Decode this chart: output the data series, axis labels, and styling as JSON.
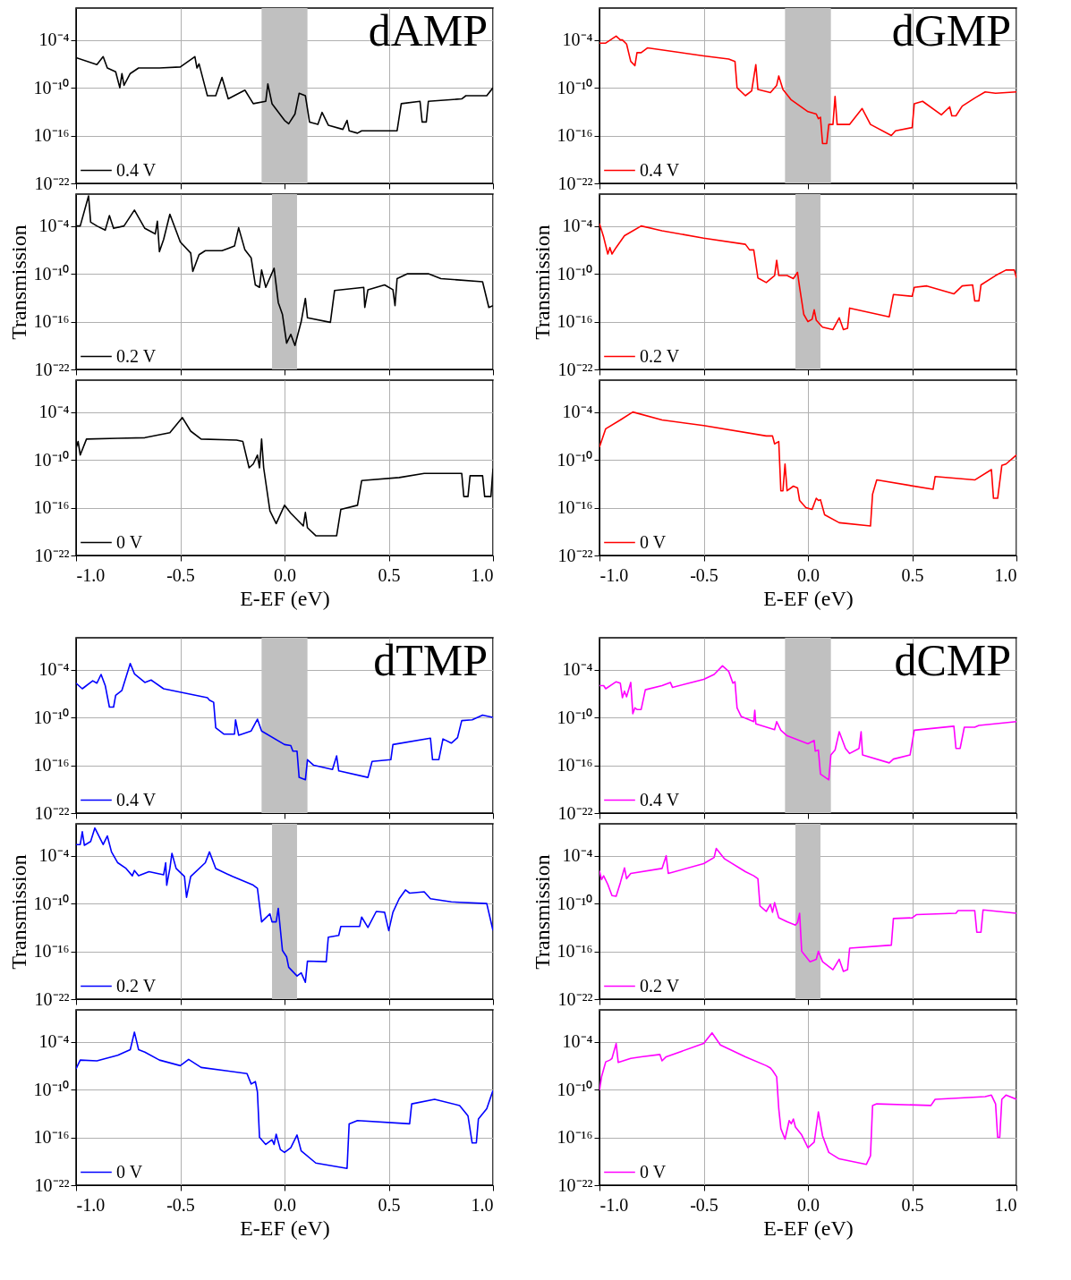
{
  "chart_data": [
    {
      "type": "line",
      "title": "dAMP",
      "series": [
        {
          "name": "0.4 V",
          "color": "#000000",
          "x": [
            -1.0,
            -0.9,
            -0.87,
            -0.85,
            -0.81,
            -0.79,
            -0.78,
            -0.77,
            -0.74,
            -0.7,
            -0.6,
            -0.5,
            -0.43,
            -0.42,
            -0.41,
            -0.38,
            -0.37,
            -0.33,
            -0.3,
            -0.27,
            -0.19,
            -0.15,
            -0.09,
            -0.08,
            -0.06,
            0.0,
            0.02,
            0.05,
            0.07,
            0.1,
            0.12,
            0.16,
            0.18,
            0.21,
            0.28,
            0.3,
            0.31,
            0.35,
            0.37,
            0.54,
            0.56,
            0.65,
            0.66,
            0.68,
            0.69,
            0.85,
            0.87,
            0.97,
            1.0
          ],
          "values": [
            6e-07,
            8e-08,
            8e-07,
            3e-08,
            1e-08,
            1e-10,
            6e-09,
            2e-10,
            6e-09,
            3e-08,
            3e-08,
            4e-08,
            8e-07,
            3e-08,
            1e-07,
            1e-10,
            1e-11,
            1e-11,
            2e-09,
            4e-12,
            5e-11,
            1e-12,
            2e-12,
            3e-10,
            1e-12,
            8e-15,
            3e-15,
            5e-14,
            2e-11,
            1e-11,
            5e-15,
            2.5e-15,
            8e-14,
            2e-15,
            6e-16,
            8e-15,
            4e-16,
            2e-16,
            4e-16,
            4e-16,
            1e-12,
            2e-12,
            5e-15,
            5e-15,
            2e-12,
            4e-12,
            1e-11,
            1e-11,
            1e-10
          ]
        }
      ],
      "xlim": [
        -1,
        1
      ],
      "xticks": [
        {
          "value": -1,
          "label": null
        },
        {
          "value": -0.5,
          "label": null
        },
        {
          "value": 0,
          "label": null
        },
        {
          "value": 0.5,
          "label": null
        },
        {
          "value": 1,
          "label": null
        }
      ],
      "ylim": [
        1e-22,
        1
      ],
      "yticks": [
        {
          "value": 1e-22,
          "label": "10⁻²²"
        },
        {
          "value": 1e-16,
          "label": "10⁻¹⁶"
        },
        {
          "value": 1e-10,
          "label": "10⁻¹⁰"
        },
        {
          "value": 0.0001,
          "label": "10⁻⁴"
        }
      ],
      "log": true,
      "grid": true,
      "legend": "bottom left",
      "tick_labels": "y",
      "bands": [
        {
          "axis": "x",
          "from": -0.11,
          "to": 0.11,
          "color": "#c0c0c0"
        }
      ]
    },
    {
      "type": "line",
      "ylabel": "Transmission",
      "series": [
        {
          "name": "0.2 V",
          "color": "#000000",
          "x": [
            -1.0,
            -0.98,
            -0.94,
            -0.93,
            -0.9,
            -0.86,
            -0.84,
            -0.82,
            -0.77,
            -0.72,
            -0.67,
            -0.62,
            -0.61,
            -0.6,
            -0.58,
            -0.55,
            -0.5,
            -0.45,
            -0.44,
            -0.41,
            -0.38,
            -0.3,
            -0.24,
            -0.22,
            -0.19,
            -0.16,
            -0.14,
            -0.12,
            -0.11,
            -0.09,
            -0.05,
            -0.03,
            -0.01,
            0.01,
            0.03,
            0.05,
            0.08,
            0.1,
            0.11,
            0.22,
            0.24,
            0.38,
            0.385,
            0.4,
            0.48,
            0.52,
            0.53,
            0.54,
            0.59,
            0.69,
            0.75,
            0.95,
            0.98,
            1.0
          ],
          "values": [
            0.0001,
            0.0001,
            0.6,
            0.0003,
            0.0001,
            3e-05,
            0.002,
            5e-05,
            0.0001,
            0.01,
            5e-05,
            1e-05,
            0.0004,
            6e-08,
            2e-06,
            0.003,
            1e-06,
            4e-08,
            2e-10,
            2.5e-08,
            8e-08,
            8e-08,
            3e-07,
            6e-05,
            1e-07,
            1e-08,
            4e-12,
            2e-12,
            3e-10,
            2e-12,
            5e-10,
            2.5e-14,
            8e-16,
            2e-19,
            2.5e-18,
            1e-19,
            1e-16,
            8e-14,
            3e-16,
            8e-17,
            8e-13,
            2e-12,
            6e-15,
            1e-12,
            4e-12,
            1e-12,
            1e-14,
            2.5e-11,
            1e-10,
            1e-10,
            2.5e-11,
            1e-11,
            6e-15,
            1e-14
          ]
        }
      ],
      "xlim": [
        -1,
        1
      ],
      "xticks": [
        {
          "value": -1,
          "label": null
        },
        {
          "value": -0.5,
          "label": null
        },
        {
          "value": 0,
          "label": null
        },
        {
          "value": 0.5,
          "label": null
        },
        {
          "value": 1,
          "label": null
        }
      ],
      "ylim": [
        1e-22,
        1
      ],
      "yticks": [
        {
          "value": 1e-22,
          "label": "10⁻²²"
        },
        {
          "value": 1e-16,
          "label": "10⁻¹⁶"
        },
        {
          "value": 1e-10,
          "label": "10⁻¹⁰"
        },
        {
          "value": 0.0001,
          "label": "10⁻⁴"
        }
      ],
      "log": true,
      "grid": true,
      "legend": "bottom left",
      "tick_labels": "y",
      "bands": [
        {
          "axis": "x",
          "from": -0.06,
          "to": 0.06,
          "color": "#c0c0c0"
        }
      ]
    },
    {
      "type": "line",
      "xlabel": "E-EF (eV)",
      "series": [
        {
          "name": "0 V",
          "color": "#000000",
          "x": [
            -1.0,
            -0.99,
            -0.98,
            -0.95,
            -0.8,
            -0.67,
            -0.55,
            -0.49,
            -0.45,
            -0.4,
            -0.23,
            -0.2,
            -0.17,
            -0.15,
            -0.13,
            -0.12,
            -0.11,
            -0.1,
            -0.07,
            -0.04,
            0.0,
            0.03,
            0.09,
            0.1,
            0.11,
            0.15,
            0.25,
            0.27,
            0.35,
            0.37,
            0.55,
            0.67,
            0.85,
            0.86,
            0.88,
            0.89,
            0.95,
            0.96,
            0.99,
            1.0
          ],
          "values": [
            3e-09,
            2e-08,
            4e-10,
            4e-08,
            5e-08,
            6e-08,
            2.5e-07,
            2e-05,
            4e-07,
            4e-08,
            3e-08,
            2e-08,
            1e-11,
            3e-11,
            4e-10,
            1e-11,
            4e-08,
            1e-11,
            4e-17,
            1e-18,
            2e-16,
            2e-17,
            5e-19,
            2.5e-17,
            3e-19,
            3e-20,
            3e-20,
            6e-17,
            2e-16,
            2.5e-13,
            6e-13,
            2e-12,
            2e-12,
            2.5e-15,
            2.5e-15,
            1e-12,
            1e-12,
            2.5e-15,
            2.5e-15,
            8e-12
          ]
        }
      ],
      "xlim": [
        -1,
        1
      ],
      "xticks": [
        {
          "value": -1,
          "label": "-1.0"
        },
        {
          "value": -0.5,
          "label": "-0.5"
        },
        {
          "value": 0,
          "label": "0.0"
        },
        {
          "value": 0.5,
          "label": "0.5"
        },
        {
          "value": 1,
          "label": "1.0"
        }
      ],
      "ylim": [
        1e-22,
        1
      ],
      "yticks": [
        {
          "value": 1e-22,
          "label": "10⁻²²"
        },
        {
          "value": 1e-16,
          "label": "10⁻¹⁶"
        },
        {
          "value": 1e-10,
          "label": "10⁻¹⁰"
        },
        {
          "value": 0.0001,
          "label": "10⁻⁴"
        }
      ],
      "log": true,
      "grid": true,
      "legend": "bottom left"
    },
    {
      "type": "line",
      "title": "dGMP",
      "series": [
        {
          "name": "0.4 V",
          "color": "#ff0000",
          "x": [
            -1.0,
            -0.97,
            -0.92,
            -0.9,
            -0.89,
            -0.87,
            -0.85,
            -0.83,
            -0.82,
            -0.8,
            -0.77,
            -0.5,
            -0.38,
            -0.35,
            -0.34,
            -0.3,
            -0.27,
            -0.25,
            -0.24,
            -0.18,
            -0.15,
            -0.14,
            -0.12,
            -0.08,
            0.0,
            0.04,
            0.05,
            0.06,
            0.07,
            0.09,
            0.1,
            0.12,
            0.13,
            0.14,
            0.2,
            0.26,
            0.3,
            0.4,
            0.42,
            0.5,
            0.51,
            0.55,
            0.64,
            0.68,
            0.69,
            0.71,
            0.74,
            0.8,
            0.85,
            0.9,
            1.0
          ],
          "values": [
            4e-05,
            4e-05,
            0.0003,
            0.0001,
            0.0001,
            3e-05,
            2e-07,
            6e-08,
            2.5e-06,
            2.5e-06,
            1e-05,
            1e-06,
            4e-07,
            2e-07,
            1e-10,
            1e-11,
            4e-11,
            8e-08,
            6e-11,
            2.5e-11,
            2e-10,
            3e-09,
            6e-11,
            3e-12,
            1e-13,
            5e-14,
            1.3e-14,
            2e-14,
            1e-17,
            1e-17,
            2.5e-15,
            2.5e-15,
            8e-12,
            2.5e-15,
            2.5e-15,
            2.5e-13,
            2.5e-15,
            1e-16,
            4e-16,
            1e-15,
            1e-12,
            2e-12,
            4e-14,
            4e-13,
            3e-14,
            3e-14,
            5e-13,
            5e-12,
            3e-11,
            2e-11,
            3e-11
          ]
        }
      ],
      "xlim": [
        -1,
        1
      ],
      "xticks": [
        {
          "value": -1,
          "label": null
        },
        {
          "value": -0.5,
          "label": null
        },
        {
          "value": 0,
          "label": null
        },
        {
          "value": 0.5,
          "label": null
        },
        {
          "value": 1,
          "label": null
        }
      ],
      "ylim": [
        1e-22,
        1
      ],
      "yticks": [
        {
          "value": 1e-22,
          "label": "10⁻²²"
        },
        {
          "value": 1e-16,
          "label": "10⁻¹⁶"
        },
        {
          "value": 1e-10,
          "label": "10⁻¹⁰"
        },
        {
          "value": 0.0001,
          "label": "10⁻⁴"
        }
      ],
      "log": true,
      "grid": true,
      "legend": "bottom left",
      "tick_labels": "y",
      "bands": [
        {
          "axis": "x",
          "from": -0.11,
          "to": 0.11,
          "color": "#c0c0c0"
        }
      ]
    },
    {
      "type": "line",
      "ylabel": "Transmission",
      "series": [
        {
          "name": "0.2 V",
          "color": "#ff0000",
          "x": [
            -1.0,
            -0.98,
            -0.96,
            -0.95,
            -0.94,
            -0.92,
            -0.88,
            -0.8,
            -0.7,
            -0.5,
            -0.3,
            -0.28,
            -0.26,
            -0.24,
            -0.2,
            -0.16,
            -0.15,
            -0.14,
            -0.1,
            -0.07,
            -0.05,
            -0.04,
            -0.02,
            0.0,
            0.02,
            0.03,
            0.04,
            0.07,
            0.12,
            0.15,
            0.17,
            0.19,
            0.2,
            0.39,
            0.41,
            0.5,
            0.51,
            0.57,
            0.7,
            0.74,
            0.79,
            0.8,
            0.82,
            0.83,
            0.9,
            0.95,
            0.99,
            1.0
          ],
          "values": [
            0.0002,
            4e-06,
            3e-08,
            2e-07,
            3e-08,
            2e-07,
            6e-06,
            0.0001,
            2.5e-05,
            3e-06,
            5e-07,
            1e-07,
            1e-07,
            3e-11,
            8e-12,
            6e-11,
            5e-09,
            6e-11,
            6e-11,
            2.5e-11,
            1.5e-10,
            2e-12,
            8e-16,
            1e-16,
            2e-16,
            3e-15,
            1.5e-16,
            2e-17,
            1e-17,
            3e-16,
            1e-17,
            1.5e-17,
            5e-15,
            4e-16,
            2.5e-13,
            1.5e-13,
            2e-12,
            3e-12,
            3e-13,
            3e-12,
            4e-12,
            4e-14,
            4e-14,
            4e-12,
            6e-11,
            3e-10,
            3e-10,
            3e-11
          ]
        }
      ],
      "xlim": [
        -1,
        1
      ],
      "xticks": [
        {
          "value": -1,
          "label": null
        },
        {
          "value": -0.5,
          "label": null
        },
        {
          "value": 0,
          "label": null
        },
        {
          "value": 0.5,
          "label": null
        },
        {
          "value": 1,
          "label": null
        }
      ],
      "ylim": [
        1e-22,
        1
      ],
      "yticks": [
        {
          "value": 1e-22,
          "label": "10⁻²²"
        },
        {
          "value": 1e-16,
          "label": "10⁻¹⁶"
        },
        {
          "value": 1e-10,
          "label": "10⁻¹⁰"
        },
        {
          "value": 0.0001,
          "label": "10⁻⁴"
        }
      ],
      "log": true,
      "grid": true,
      "legend": "bottom left",
      "tick_labels": "y",
      "bands": [
        {
          "axis": "x",
          "from": -0.06,
          "to": 0.06,
          "color": "#c0c0c0"
        }
      ]
    },
    {
      "type": "line",
      "xlabel": "E-EF (eV)",
      "series": [
        {
          "name": "0 V",
          "color": "#ff0000",
          "x": [
            -1.0,
            -0.97,
            -0.9,
            -0.84,
            -0.7,
            -0.5,
            -0.2,
            -0.17,
            -0.16,
            -0.14,
            -0.13,
            -0.12,
            -0.11,
            -0.1,
            -0.07,
            -0.05,
            -0.04,
            -0.01,
            0.02,
            0.04,
            0.05,
            0.06,
            0.08,
            0.15,
            0.3,
            0.31,
            0.33,
            0.6,
            0.61,
            0.8,
            0.88,
            0.89,
            0.91,
            0.93,
            0.95,
            1.0
          ],
          "values": [
            4e-09,
            8e-07,
            1e-05,
            0.0001,
            1e-05,
            2e-06,
            1e-07,
            1e-07,
            1e-08,
            2e-08,
            1.3e-14,
            1.3e-14,
            3e-11,
            1.3e-14,
            5e-14,
            3e-14,
            8e-16,
            1e-16,
            6e-17,
            1.5e-15,
            8e-16,
            1e-15,
            1.3e-17,
            1.3e-18,
            5e-19,
            5e-15,
            3e-13,
            2e-14,
            8e-13,
            3e-13,
            6e-12,
            1.5e-15,
            1.5e-15,
            2e-11,
            3e-11,
            4e-10
          ]
        }
      ],
      "xlim": [
        -1,
        1
      ],
      "xticks": [
        {
          "value": -1,
          "label": "-1.0"
        },
        {
          "value": -0.5,
          "label": "-0.5"
        },
        {
          "value": 0,
          "label": "0.0"
        },
        {
          "value": 0.5,
          "label": "0.5"
        },
        {
          "value": 1,
          "label": "1.0"
        }
      ],
      "ylim": [
        1e-22,
        1
      ],
      "yticks": [
        {
          "value": 1e-22,
          "label": "10⁻²²"
        },
        {
          "value": 1e-16,
          "label": "10⁻¹⁶"
        },
        {
          "value": 1e-10,
          "label": "10⁻¹⁰"
        },
        {
          "value": 0.0001,
          "label": "10⁻⁴"
        }
      ],
      "log": true,
      "grid": true,
      "legend": "bottom left"
    },
    {
      "type": "line",
      "title": "dTMP",
      "series": [
        {
          "name": "0.4 V",
          "color": "#0000ff",
          "x": [
            -1.0,
            -0.97,
            -0.92,
            -0.9,
            -0.88,
            -0.86,
            -0.84,
            -0.82,
            -0.81,
            -0.78,
            -0.74,
            -0.72,
            -0.67,
            -0.64,
            -0.58,
            -0.37,
            -0.36,
            -0.34,
            -0.33,
            -0.29,
            -0.24,
            -0.235,
            -0.22,
            -0.16,
            -0.13,
            -0.11,
            0.0,
            0.03,
            0.04,
            0.06,
            0.07,
            0.1,
            0.11,
            0.14,
            0.23,
            0.25,
            0.26,
            0.4,
            0.42,
            0.51,
            0.52,
            0.7,
            0.71,
            0.74,
            0.76,
            0.8,
            0.83,
            0.85,
            0.9,
            0.95,
            1.0
          ],
          "values": [
            2e-06,
            4e-07,
            4e-06,
            2e-06,
            2.5e-05,
            1e-06,
            2e-09,
            2e-09,
            6e-08,
            2.5e-07,
            0.0006,
            3e-05,
            2.5e-06,
            5e-06,
            4e-07,
            3e-08,
            1.5e-08,
            8e-09,
            5e-12,
            8e-13,
            8e-13,
            5e-11,
            6e-13,
            2e-12,
            6e-11,
            2e-12,
            4e-14,
            3e-14,
            6e-15,
            6e-15,
            3e-18,
            1.5e-18,
            5e-16,
            1e-16,
            3e-17,
            1.5e-15,
            2e-17,
            3e-18,
            3e-16,
            5e-16,
            4e-14,
            2.5e-13,
            5e-16,
            5e-16,
            2e-13,
            6e-14,
            3e-13,
            4e-11,
            5e-11,
            2e-10,
            1e-10
          ]
        }
      ],
      "xlim": [
        -1,
        1
      ],
      "xticks": [
        {
          "value": -1,
          "label": null
        },
        {
          "value": -0.5,
          "label": null
        },
        {
          "value": 0,
          "label": null
        },
        {
          "value": 0.5,
          "label": null
        },
        {
          "value": 1,
          "label": null
        }
      ],
      "ylim": [
        1e-22,
        1
      ],
      "yticks": [
        {
          "value": 1e-22,
          "label": "10⁻²²"
        },
        {
          "value": 1e-16,
          "label": "10⁻¹⁶"
        },
        {
          "value": 1e-10,
          "label": "10⁻¹⁰"
        },
        {
          "value": 0.0001,
          "label": "10⁻⁴"
        }
      ],
      "log": true,
      "grid": true,
      "legend": "bottom left",
      "tick_labels": "y",
      "bands": [
        {
          "axis": "x",
          "from": -0.11,
          "to": 0.11,
          "color": "#c0c0c0"
        }
      ]
    },
    {
      "type": "line",
      "ylabel": "Transmission",
      "series": [
        {
          "name": "0.2 V",
          "color": "#0000ff",
          "x": [
            -1.0,
            -0.98,
            -0.97,
            -0.96,
            -0.93,
            -0.91,
            -0.87,
            -0.85,
            -0.83,
            -0.8,
            -0.76,
            -0.73,
            -0.72,
            -0.7,
            -0.65,
            -0.58,
            -0.57,
            -0.565,
            -0.55,
            -0.54,
            -0.52,
            -0.48,
            -0.47,
            -0.45,
            -0.38,
            -0.36,
            -0.33,
            -0.25,
            -0.15,
            -0.13,
            -0.11,
            -0.07,
            -0.06,
            -0.04,
            -0.03,
            -0.01,
            0.01,
            0.02,
            0.06,
            0.08,
            0.1,
            0.11,
            0.2,
            0.21,
            0.26,
            0.27,
            0.36,
            0.37,
            0.4,
            0.44,
            0.48,
            0.5,
            0.52,
            0.55,
            0.58,
            0.6,
            0.67,
            0.7,
            0.8,
            0.97,
            1.0
          ],
          "values": [
            0.0025,
            0.0025,
            0.1,
            0.002,
            0.006,
            0.3,
            0.0025,
            0.03,
            0.0003,
            1.3e-05,
            2.5e-06,
            3e-07,
            1.4e-06,
            3e-07,
            1e-06,
            4e-07,
            1.3e-05,
            2e-08,
            2.5e-06,
            0.0002,
            2.5e-06,
            2.5e-07,
            6e-10,
            2.5e-07,
            1.3e-05,
            0.0003,
            2.5e-06,
            2.5e-07,
            2e-08,
            8e-09,
            5e-13,
            5e-12,
            5e-13,
            5e-13,
            2.5e-11,
            1.3e-16,
            2e-17,
            1e-18,
            8e-20,
            2e-19,
            1.3e-20,
            6e-18,
            5e-18,
            6e-15,
            1e-14,
            1.3e-13,
            1.3e-13,
            2e-12,
            1e-13,
            1e-11,
            8e-12,
            4e-14,
            8e-12,
            4e-10,
            5e-09,
            2e-09,
            3e-09,
            4e-10,
            1.6e-10,
            1e-10,
            4e-14
          ]
        }
      ],
      "xlim": [
        -1,
        1
      ],
      "xticks": [
        {
          "value": -1,
          "label": null
        },
        {
          "value": -0.5,
          "label": null
        },
        {
          "value": 0,
          "label": null
        },
        {
          "value": 0.5,
          "label": null
        },
        {
          "value": 1,
          "label": null
        }
      ],
      "ylim": [
        1e-22,
        1
      ],
      "yticks": [
        {
          "value": 1e-22,
          "label": "10⁻²²"
        },
        {
          "value": 1e-16,
          "label": "10⁻¹⁶"
        },
        {
          "value": 1e-10,
          "label": "10⁻¹⁰"
        },
        {
          "value": 0.0001,
          "label": "10⁻⁴"
        }
      ],
      "log": true,
      "grid": true,
      "legend": "bottom left",
      "tick_labels": "y",
      "bands": [
        {
          "axis": "x",
          "from": -0.06,
          "to": 0.06,
          "color": "#c0c0c0"
        }
      ]
    },
    {
      "type": "line",
      "xlabel": "E-EF (eV)",
      "series": [
        {
          "name": "0 V",
          "color": "#0000ff",
          "x": [
            -1.0,
            -0.98,
            -0.9,
            -0.8,
            -0.74,
            -0.72,
            -0.7,
            -0.67,
            -0.6,
            -0.5,
            -0.46,
            -0.4,
            -0.18,
            -0.16,
            -0.14,
            -0.13,
            -0.12,
            -0.09,
            -0.06,
            -0.05,
            -0.04,
            -0.02,
            0.0,
            0.03,
            0.06,
            0.08,
            0.15,
            0.3,
            0.31,
            0.35,
            0.6,
            0.61,
            0.72,
            0.84,
            0.88,
            0.9,
            0.92,
            0.93,
            0.97,
            1.0
          ],
          "values": [
            4e-08,
            5e-07,
            4e-07,
            2e-06,
            1e-05,
            0.0016,
            1e-05,
            5e-06,
            5e-07,
            1e-07,
            6e-07,
            6e-08,
            1e-08,
            5e-10,
            1e-09,
            5e-11,
            1e-16,
            1.3e-17,
            5e-17,
            1.3e-17,
            2.5e-16,
            3e-18,
            1.3e-18,
            5e-18,
            2e-16,
            2e-18,
            6e-20,
            1.3e-20,
            5e-15,
            1.3e-14,
            5e-15,
            1.6e-12,
            6e-12,
            1e-12,
            5e-14,
            2e-17,
            2e-17,
            2e-14,
            4e-13,
            8e-11
          ]
        }
      ],
      "xlim": [
        -1,
        1
      ],
      "xticks": [
        {
          "value": -1,
          "label": "-1.0"
        },
        {
          "value": -0.5,
          "label": "-0.5"
        },
        {
          "value": 0,
          "label": "0.0"
        },
        {
          "value": 0.5,
          "label": "0.5"
        },
        {
          "value": 1,
          "label": "1.0"
        }
      ],
      "ylim": [
        1e-22,
        1
      ],
      "yticks": [
        {
          "value": 1e-22,
          "label": "10⁻²²"
        },
        {
          "value": 1e-16,
          "label": "10⁻¹⁶"
        },
        {
          "value": 1e-10,
          "label": "10⁻¹⁰"
        },
        {
          "value": 0.0001,
          "label": "10⁻⁴"
        }
      ],
      "log": true,
      "grid": true,
      "legend": "bottom left"
    },
    {
      "type": "line",
      "title": "dCMP",
      "series": [
        {
          "name": "0.4 V",
          "color": "#ff00ff",
          "x": [
            -1.0,
            -0.98,
            -0.97,
            -0.92,
            -0.9,
            -0.89,
            -0.88,
            -0.87,
            -0.85,
            -0.84,
            -0.83,
            -0.82,
            -0.8,
            -0.78,
            -0.7,
            -0.66,
            -0.65,
            -0.5,
            -0.45,
            -0.41,
            -0.38,
            -0.36,
            -0.35,
            -0.34,
            -0.32,
            -0.26,
            -0.255,
            -0.25,
            -0.16,
            -0.15,
            -0.13,
            -0.1,
            0.0,
            0.03,
            0.035,
            0.05,
            0.06,
            0.1,
            0.11,
            0.13,
            0.15,
            0.18,
            0.2,
            0.245,
            0.255,
            0.262,
            0.39,
            0.41,
            0.49,
            0.51,
            0.7,
            0.71,
            0.73,
            0.75,
            0.8,
            0.82,
            1.0
          ],
          "values": [
            1e-06,
            1e-06,
            4e-07,
            3e-06,
            2e-06,
            3e-08,
            2e-07,
            4e-08,
            2.5e-06,
            3e-10,
            1.6e-09,
            1e-09,
            1e-09,
            3e-07,
            1e-06,
            2.5e-06,
            6e-07,
            6e-06,
            2.5e-05,
            0.0003,
            6e-05,
            2e-06,
            3e-06,
            1.6e-09,
            1.3e-10,
            3e-11,
            8e-10,
            1.6e-11,
            3e-12,
            3e-11,
            2.5e-12,
            5e-13,
            5e-14,
            1.3e-13,
            6e-15,
            8e-15,
            8e-18,
            1.5e-18,
            2e-15,
            8e-15,
            1.6e-12,
            1.3e-14,
            3e-15,
            1.3e-14,
            1.6e-12,
            2e-15,
            2e-16,
            6e-16,
            2e-15,
            2.5e-12,
            8e-12,
            1.3e-14,
            1.3e-14,
            6e-12,
            6e-12,
            1e-11,
            3e-11
          ]
        }
      ],
      "xlim": [
        -1,
        1
      ],
      "xticks": [
        {
          "value": -1,
          "label": null
        },
        {
          "value": -0.5,
          "label": null
        },
        {
          "value": 0,
          "label": null
        },
        {
          "value": 0.5,
          "label": null
        },
        {
          "value": 1,
          "label": null
        }
      ],
      "ylim": [
        1e-22,
        1
      ],
      "yticks": [
        {
          "value": 1e-22,
          "label": "10⁻²²"
        },
        {
          "value": 1e-16,
          "label": "10⁻¹⁶"
        },
        {
          "value": 1e-10,
          "label": "10⁻¹⁰"
        },
        {
          "value": 0.0001,
          "label": "10⁻⁴"
        }
      ],
      "log": true,
      "grid": true,
      "legend": "bottom left",
      "tick_labels": "y",
      "bands": [
        {
          "axis": "x",
          "from": -0.11,
          "to": 0.11,
          "color": "#c0c0c0"
        }
      ]
    },
    {
      "type": "line",
      "ylabel": "Transmission",
      "series": [
        {
          "name": "0.2 V",
          "color": "#ff00ff",
          "x": [
            -1.0,
            -0.99,
            -0.98,
            -0.96,
            -0.94,
            -0.92,
            -0.9,
            -0.88,
            -0.87,
            -0.85,
            -0.7,
            -0.68,
            -0.67,
            -0.5,
            -0.45,
            -0.44,
            -0.4,
            -0.3,
            -0.26,
            -0.24,
            -0.23,
            -0.2,
            -0.18,
            -0.17,
            -0.16,
            -0.14,
            -0.1,
            -0.06,
            -0.05,
            -0.04,
            -0.03,
            0.01,
            0.04,
            0.05,
            0.07,
            0.12,
            0.15,
            0.17,
            0.19,
            0.2,
            0.4,
            0.41,
            0.5,
            0.52,
            0.71,
            0.72,
            0.8,
            0.81,
            0.83,
            0.84,
            1.0
          ],
          "values": [
            1.3e-06,
            1e-07,
            3e-07,
            2.5e-08,
            1e-09,
            8e-10,
            4e-08,
            3e-06,
            1.3e-07,
            6e-07,
            2.5e-06,
            0.0001,
            6e-07,
            1e-05,
            6e-05,
            0.0008,
            4e-05,
            1e-06,
            3e-07,
            1.3e-07,
            5e-11,
            1e-11,
            8e-11,
            8e-12,
            1.3e-10,
            1.6e-12,
            5e-13,
            2e-13,
            4e-13,
            6e-12,
            1e-16,
            5e-18,
            1e-17,
            1e-16,
            5e-18,
            5e-19,
            1e-17,
            3e-19,
            5e-19,
            2.5e-16,
            6e-16,
            1.3e-12,
            1.6e-12,
            4e-12,
            6e-12,
            1.3e-11,
            1.3e-11,
            2.5e-14,
            2.5e-14,
            1.6e-11,
            6e-12
          ]
        }
      ],
      "xlim": [
        -1,
        1
      ],
      "xticks": [
        {
          "value": -1,
          "label": null
        },
        {
          "value": -0.5,
          "label": null
        },
        {
          "value": 0,
          "label": null
        },
        {
          "value": 0.5,
          "label": null
        },
        {
          "value": 1,
          "label": null
        }
      ],
      "ylim": [
        1e-22,
        1
      ],
      "yticks": [
        {
          "value": 1e-22,
          "label": "10⁻²²"
        },
        {
          "value": 1e-16,
          "label": "10⁻¹⁶"
        },
        {
          "value": 1e-10,
          "label": "10⁻¹⁰"
        },
        {
          "value": 0.0001,
          "label": "10⁻⁴"
        }
      ],
      "log": true,
      "grid": true,
      "legend": "bottom left",
      "tick_labels": "y",
      "bands": [
        {
          "axis": "x",
          "from": -0.06,
          "to": 0.06,
          "color": "#c0c0c0"
        }
      ]
    },
    {
      "type": "line",
      "xlabel": "E-EF (eV)",
      "series": [
        {
          "name": "0 V",
          "color": "#ff00ff",
          "x": [
            -1.0,
            -0.99,
            -0.97,
            -0.95,
            -0.94,
            -0.92,
            -0.91,
            -0.85,
            -0.8,
            -0.71,
            -0.7,
            -0.68,
            -0.5,
            -0.46,
            -0.42,
            -0.3,
            -0.2,
            -0.18,
            -0.17,
            -0.16,
            -0.15,
            -0.14,
            -0.13,
            -0.11,
            -0.09,
            -0.08,
            -0.07,
            -0.06,
            -0.03,
            0.0,
            0.03,
            0.05,
            0.07,
            0.1,
            0.15,
            0.28,
            0.3,
            0.31,
            0.33,
            0.59,
            0.61,
            0.85,
            0.88,
            0.9,
            0.91,
            0.92,
            0.93,
            0.95,
            1.0
          ],
          "values": [
            8e-11,
            4e-09,
            3e-07,
            5e-07,
            8e-07,
            6e-05,
            2.5e-07,
            8e-07,
            1.3e-06,
            2.5e-06,
            4e-07,
            1.3e-06,
            6e-05,
            0.0013,
            4e-05,
            1.3e-06,
            1e-07,
            5e-08,
            2.5e-08,
            1e-08,
            4e-09,
            4e-13,
            1.3e-15,
            6e-17,
            1.3e-14,
            5e-15,
            2e-14,
            2e-15,
            2e-16,
            5e-18,
            2.5e-17,
            1.6e-13,
            1.6e-16,
            1.3e-18,
            2e-19,
            4e-20,
            5e-19,
            1e-12,
            1.6e-12,
            1e-12,
            6e-12,
            1.3e-11,
            2e-11,
            1.6e-12,
            1e-16,
            1e-16,
            6e-12,
            2e-11,
            6e-12
          ]
        }
      ],
      "xlim": [
        -1,
        1
      ],
      "xticks": [
        {
          "value": -1,
          "label": "-1.0"
        },
        {
          "value": -0.5,
          "label": "-0.5"
        },
        {
          "value": 0,
          "label": "0.0"
        },
        {
          "value": 0.5,
          "label": "0.5"
        },
        {
          "value": 1,
          "label": "1.0"
        }
      ],
      "ylim": [
        1e-22,
        1
      ],
      "yticks": [
        {
          "value": 1e-22,
          "label": "10⁻²²"
        },
        {
          "value": 1e-16,
          "label": "10⁻¹⁶"
        },
        {
          "value": 1e-10,
          "label": "10⁻¹⁰"
        },
        {
          "value": 0.0001,
          "label": "10⁻⁴"
        }
      ],
      "log": true,
      "grid": true,
      "legend": "bottom left"
    }
  ]
}
